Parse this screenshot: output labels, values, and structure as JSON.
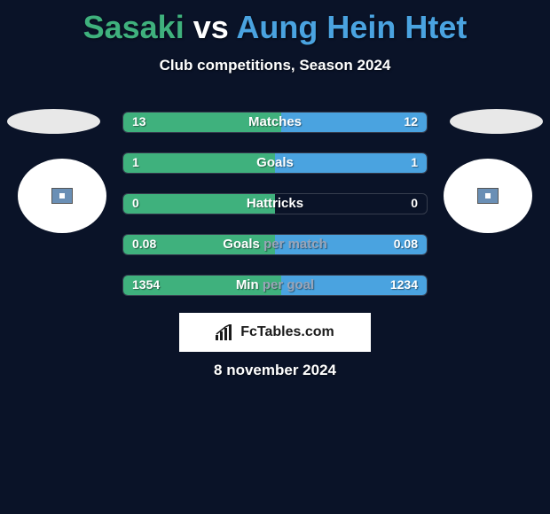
{
  "title": {
    "prefix": "Sasaki",
    "vs": " vs ",
    "suffix": "Aung Hein Htet",
    "prefix_color": "#3fb17d",
    "vs_color": "#ffffff",
    "suffix_color": "#4aa3e0"
  },
  "subtitle": "Club competitions, Season 2024",
  "colors": {
    "left_bar": "#3fb17d",
    "right_bar": "#4aa3e0",
    "background": "#0a1328"
  },
  "stats": [
    {
      "label": "Matches",
      "left_val": "13",
      "right_val": "12",
      "left_pct": 52,
      "right_pct": 48,
      "split": true
    },
    {
      "label": "Goals",
      "left_val": "1",
      "right_val": "1",
      "left_pct": 50,
      "right_pct": 50,
      "split": true
    },
    {
      "label": "Hattricks",
      "left_val": "0",
      "right_val": "0",
      "left_pct": 50,
      "right_pct": 0,
      "split": true
    },
    {
      "label": "Goals per match",
      "left_val": "0.08",
      "right_val": "0.08",
      "left_pct": 50,
      "right_pct": 50,
      "split_label": [
        "Goals ",
        "per match"
      ]
    },
    {
      "label": "Min per goal",
      "left_val": "1354",
      "right_val": "1234",
      "left_pct": 52,
      "right_pct": 48,
      "split_label": [
        "Min ",
        "per goal"
      ]
    }
  ],
  "brand": "FcTables.com",
  "date": "8 november 2024"
}
